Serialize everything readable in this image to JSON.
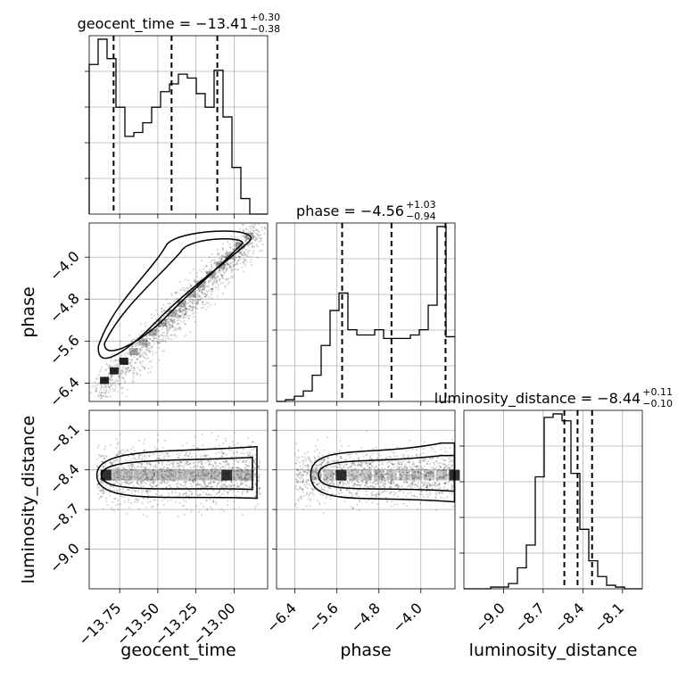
{
  "chart_data": {
    "type": "corner",
    "parameters": [
      "geocent_time",
      "phase",
      "luminosity_distance"
    ],
    "grid": true,
    "axes": {
      "geocent_time": {
        "lim": [
          -13.95,
          -12.78
        ],
        "ticks": [
          -13.75,
          -13.5,
          -13.25,
          -13.0
        ],
        "tick_labels": [
          "−13.75",
          "−13.50",
          "−13.25",
          "−13.00"
        ]
      },
      "phase": {
        "lim": [
          -6.75,
          -3.35
        ],
        "ticks": [
          -6.4,
          -5.6,
          -4.8,
          -4.0
        ],
        "tick_labels": [
          "−6.4",
          "−5.6",
          "−4.8",
          "−4.0"
        ]
      },
      "luminosity_distance": {
        "lim": [
          -9.3,
          -7.95
        ],
        "ticks": [
          -9.0,
          -8.7,
          -8.4,
          -8.1
        ],
        "tick_labels": [
          "−9.0",
          "−8.7",
          "−8.4",
          "−8.1"
        ]
      }
    },
    "titles": {
      "geocent_time": {
        "name": "geocent_time",
        "value": "−13.41",
        "plus": "+0.30",
        "minus": "−0.38"
      },
      "phase": {
        "name": "phase",
        "value": "−4.56",
        "plus": "+1.03",
        "minus": "−0.94"
      },
      "luminosity_distance": {
        "name": "luminosity_distance",
        "value": "−8.44",
        "plus": "+0.11",
        "minus": "−0.10"
      }
    },
    "histograms": {
      "geocent_time": {
        "bin_edges": [
          -13.95,
          -13.8915,
          -13.833,
          -13.7745,
          -13.716,
          -13.6575,
          -13.599,
          -13.5405,
          -13.482,
          -13.4235,
          -13.365,
          -13.3065,
          -13.248,
          -13.1895,
          -13.131,
          -13.0725,
          -13.014,
          -12.9555,
          -12.897,
          -12.8385,
          -12.78
        ],
        "counts": [
          0.77,
          0.9,
          0.8,
          0.55,
          0.4,
          0.42,
          0.47,
          0.55,
          0.63,
          0.67,
          0.72,
          0.7,
          0.62,
          0.55,
          0.74,
          0.5,
          0.24,
          0.08,
          0.0,
          0.0
        ],
        "quantiles": [
          -13.79,
          -13.41,
          -13.11
        ]
      },
      "phase": {
        "bin_edges": [
          -6.75,
          -6.58,
          -6.41,
          -6.24,
          -6.07,
          -5.9,
          -5.73,
          -5.56,
          -5.39,
          -5.22,
          -5.05,
          -4.88,
          -4.71,
          -4.54,
          -4.37,
          -4.2,
          -4.03,
          -3.86,
          -3.69,
          -3.52,
          -3.35
        ],
        "counts": [
          0.0,
          0.01,
          0.03,
          0.06,
          0.15,
          0.32,
          0.52,
          0.62,
          0.41,
          0.38,
          0.38,
          0.41,
          0.36,
          0.36,
          0.36,
          0.38,
          0.41,
          0.55,
          1.0,
          0.37
        ],
        "quantiles": [
          -5.5,
          -4.56,
          -3.53
        ]
      },
      "luminosity_distance": {
        "bin_edges": [
          -9.3,
          -9.2325,
          -9.165,
          -9.0975,
          -9.03,
          -8.9625,
          -8.895,
          -8.8275,
          -8.76,
          -8.6925,
          -8.625,
          -8.5575,
          -8.49,
          -8.4225,
          -8.355,
          -8.2875,
          -8.22,
          -8.1525,
          -8.085,
          -8.0175,
          -7.95
        ],
        "counts": [
          0.0,
          0.0,
          0.0,
          0.01,
          0.01,
          0.03,
          0.12,
          0.25,
          0.64,
          0.98,
          1.0,
          0.96,
          0.66,
          0.34,
          0.16,
          0.07,
          0.02,
          0.01,
          0.0,
          0.0
        ],
        "quantiles": [
          -8.54,
          -8.44,
          -8.33
        ]
      }
    },
    "scatter_trends": {
      "phase_vs_geocent_time": {
        "x_range": [
          -13.9,
          -12.83
        ],
        "y_range": [
          -6.6,
          -3.5
        ]
      },
      "luminosity_distance_vs_geocent_time": {
        "x_range": [
          -13.9,
          -12.83
        ],
        "y_center": -8.44
      },
      "luminosity_distance_vs_phase": {
        "x_range": [
          -6.75,
          -3.35
        ],
        "y_center": -8.44
      }
    }
  }
}
